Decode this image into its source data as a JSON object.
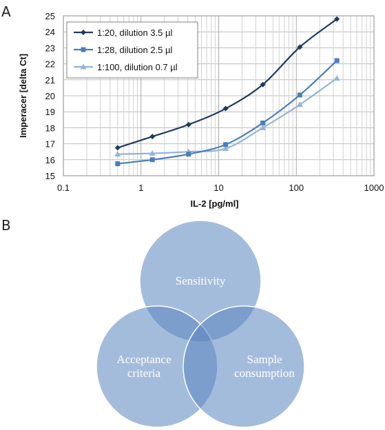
{
  "panels": {
    "a_label": "A",
    "b_label": "B"
  },
  "chart_data": {
    "type": "line",
    "xscale": "log",
    "xlim": [
      0.1,
      1000
    ],
    "ylim": [
      15,
      25
    ],
    "x_ticks": [
      "0.1",
      "1",
      "10",
      "100",
      "1000"
    ],
    "y_ticks": [
      "15",
      "16",
      "17",
      "18",
      "19",
      "20",
      "21",
      "22",
      "23",
      "24",
      "25"
    ],
    "xlabel": "IL-2 [pg/ml]",
    "ylabel": "Imperacer [delta Ct]",
    "grid": true,
    "legend_position": "top-left",
    "x": [
      0.5,
      1.4,
      4.1,
      12.3,
      37,
      111,
      333
    ],
    "series": [
      {
        "name": "1:20, dilution 3.5 µl",
        "marker": "diamond",
        "color": "#1f3a5f",
        "values": [
          16.75,
          17.45,
          18.2,
          19.2,
          20.7,
          23.05,
          24.8
        ]
      },
      {
        "name": "1:28, dilution 2.5 µl",
        "marker": "square",
        "color": "#4a7ebb",
        "values": [
          15.75,
          16.0,
          16.35,
          16.95,
          18.3,
          20.05,
          22.2
        ]
      },
      {
        "name": "1:100, dilution 0.7 µl",
        "marker": "triangle",
        "color": "#93b3d7",
        "values": [
          16.35,
          16.4,
          16.5,
          16.7,
          18.0,
          19.45,
          21.1
        ]
      }
    ]
  },
  "venn": {
    "color": "#5a85c0",
    "circles": [
      {
        "label_lines": [
          "Sensitivity"
        ]
      },
      {
        "label_lines": [
          "Acceptance",
          "criteria"
        ]
      },
      {
        "label_lines": [
          "Sample",
          "consumption"
        ]
      }
    ]
  }
}
